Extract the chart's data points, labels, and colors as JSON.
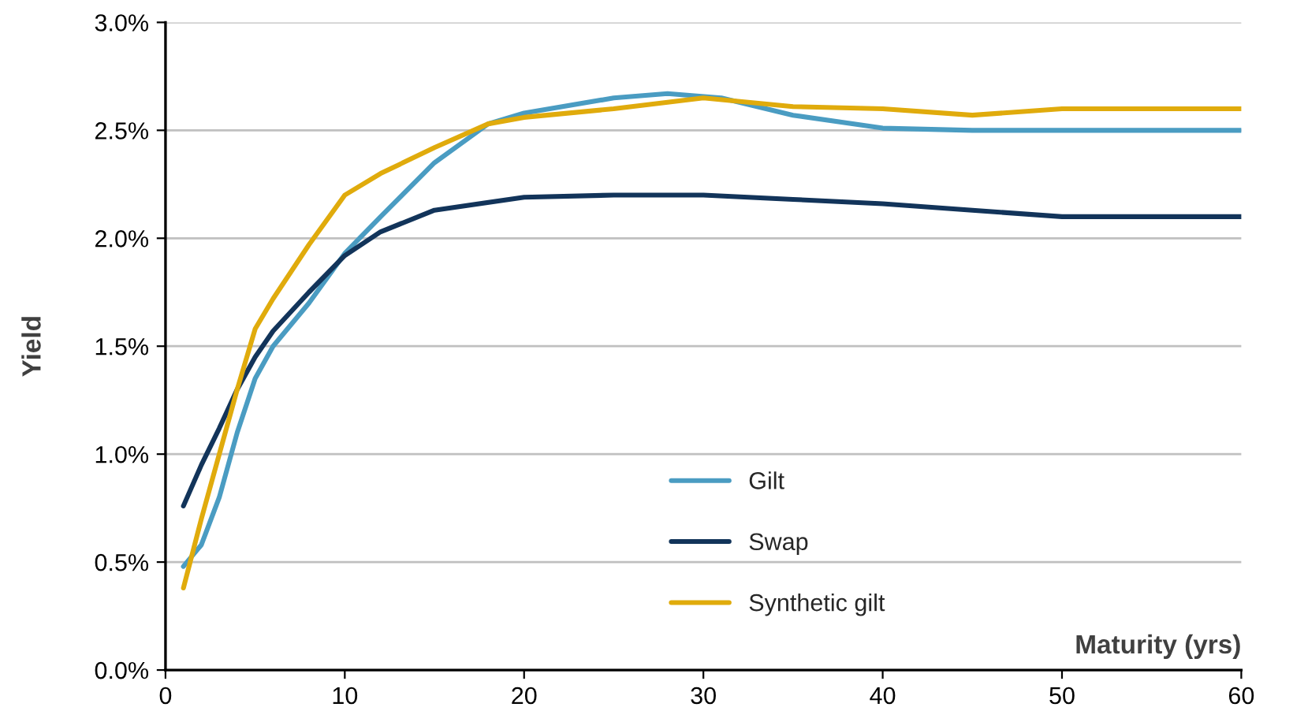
{
  "chart_data": {
    "type": "line",
    "xlabel": "Maturity (yrs)",
    "ylabel": "Yield",
    "xlim": [
      0,
      60
    ],
    "xticks": [
      0,
      10,
      20,
      30,
      40,
      50,
      60
    ],
    "ylim": [
      0,
      3
    ],
    "yticks": [
      {
        "value": 0,
        "label": "0.0%"
      },
      {
        "value": 0.5,
        "label": "0.5%"
      },
      {
        "value": 1,
        "label": "1.0%"
      },
      {
        "value": 1.5,
        "label": "1.5%"
      },
      {
        "value": 2,
        "label": "2.0%"
      },
      {
        "value": 2.5,
        "label": "2.5%"
      },
      {
        "value": 3,
        "label": "3.0%"
      }
    ],
    "grid": "y",
    "legend": "bottom",
    "marker": "none",
    "line_style": "solid",
    "series": [
      {
        "name": "Gilt",
        "color": "#4a9cc2",
        "x": [
          1,
          2,
          3,
          4,
          5,
          6,
          8,
          10,
          12,
          15,
          18,
          20,
          25,
          28,
          31,
          35,
          40,
          45,
          50,
          60
        ],
        "values": [
          0.48,
          0.58,
          0.8,
          1.1,
          1.35,
          1.5,
          1.7,
          1.93,
          2.1,
          2.35,
          2.53,
          2.58,
          2.65,
          2.67,
          2.65,
          2.57,
          2.51,
          2.5,
          2.5,
          2.5
        ]
      },
      {
        "name": "Swap",
        "color": "#12345a",
        "x": [
          1,
          2,
          3,
          4,
          5,
          6,
          8,
          10,
          12,
          15,
          20,
          25,
          30,
          35,
          40,
          45,
          50,
          60
        ],
        "values": [
          0.76,
          0.95,
          1.12,
          1.3,
          1.45,
          1.57,
          1.75,
          1.92,
          2.03,
          2.13,
          2.19,
          2.2,
          2.2,
          2.18,
          2.16,
          2.13,
          2.1,
          2.1
        ]
      },
      {
        "name": "Synthetic gilt",
        "color": "#e0ab0c",
        "x": [
          1,
          2,
          3,
          4,
          5,
          6,
          8,
          10,
          12,
          15,
          18,
          20,
          25,
          30,
          35,
          40,
          45,
          50,
          60
        ],
        "values": [
          0.38,
          0.7,
          1.0,
          1.3,
          1.58,
          1.72,
          1.97,
          2.2,
          2.3,
          2.42,
          2.53,
          2.56,
          2.6,
          2.65,
          2.61,
          2.6,
          2.57,
          2.6,
          2.6
        ]
      }
    ]
  }
}
